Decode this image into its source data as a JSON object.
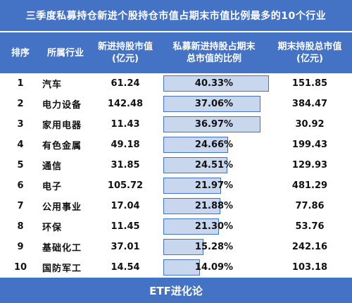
{
  "title": "三季度私募持仓新进个股持仓市值占期末市值比例最多的10个行业",
  "columns": {
    "rank": "排序",
    "industry": "所属行业",
    "new_value": "新进持股市值\n(亿元)",
    "ratio": "私募新进持股占期末\n总市值的比例",
    "total_value": "期末持股总市值\n(亿元)"
  },
  "rows": [
    {
      "rank": "1",
      "industry": "汽车",
      "new_value": "61.24",
      "ratio": "40.33%",
      "ratio_value": 40.33,
      "total_value": "151.85"
    },
    {
      "rank": "2",
      "industry": "电力设备",
      "new_value": "142.48",
      "ratio": "37.06%",
      "ratio_value": 37.06,
      "total_value": "384.47"
    },
    {
      "rank": "3",
      "industry": "家用电器",
      "new_value": "11.43",
      "ratio": "36.97%",
      "ratio_value": 36.97,
      "total_value": "30.92"
    },
    {
      "rank": "4",
      "industry": "有色金属",
      "new_value": "49.18",
      "ratio": "24.66%",
      "ratio_value": 24.66,
      "total_value": "199.43"
    },
    {
      "rank": "5",
      "industry": "通信",
      "new_value": "31.85",
      "ratio": "24.51%",
      "ratio_value": 24.51,
      "total_value": "129.93"
    },
    {
      "rank": "6",
      "industry": "电子",
      "new_value": "105.72",
      "ratio": "21.97%",
      "ratio_value": 21.97,
      "total_value": "481.29"
    },
    {
      "rank": "7",
      "industry": "公用事业",
      "new_value": "17.04",
      "ratio": "21.88%",
      "ratio_value": 21.88,
      "total_value": "77.86"
    },
    {
      "rank": "8",
      "industry": "环保",
      "new_value": "11.45",
      "ratio": "21.30%",
      "ratio_value": 21.3,
      "total_value": "53.76"
    },
    {
      "rank": "9",
      "industry": "基础化工",
      "new_value": "37.01",
      "ratio": "15.28%",
      "ratio_value": 15.28,
      "total_value": "242.16"
    },
    {
      "rank": "10",
      "industry": "国防军工",
      "new_value": "14.54",
      "ratio": "14.09%",
      "ratio_value": 14.09,
      "total_value": "103.18"
    }
  ],
  "footer": "ETF进化论",
  "colors": {
    "header_bg": "#4472c4",
    "bar_fill": "#c9d7ee",
    "bar_border": "#4472c4"
  }
}
